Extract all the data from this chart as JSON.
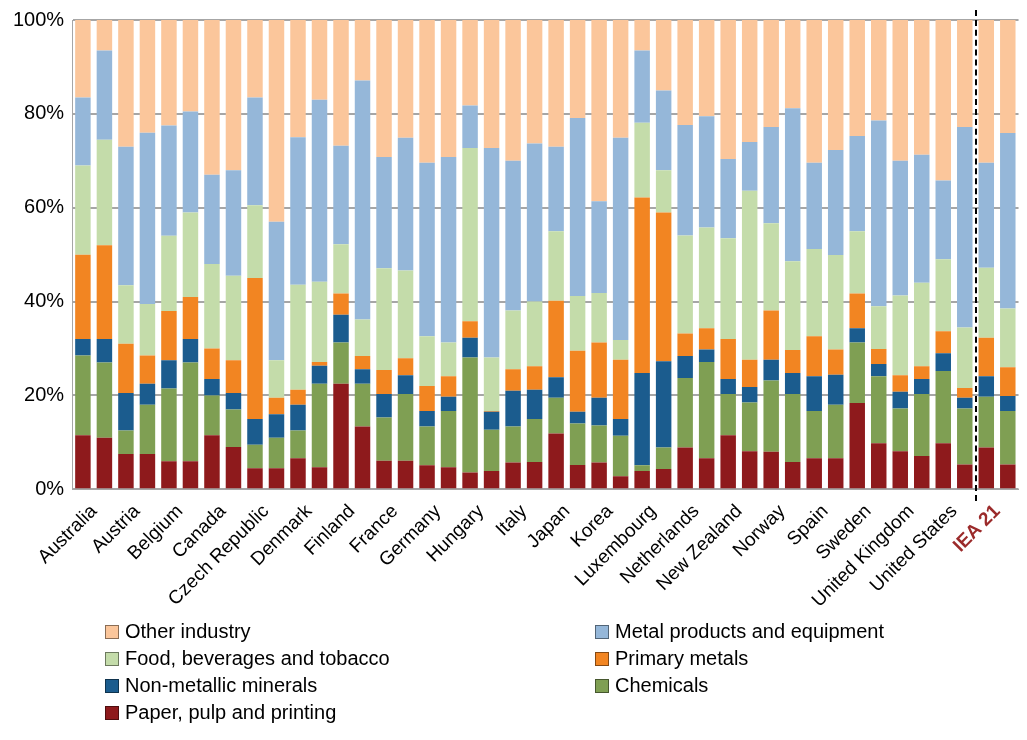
{
  "chart_data": {
    "type": "bar",
    "stacked": true,
    "grid": "y",
    "legend": "bottom",
    "categories": [
      "Australia",
      null,
      "Austria",
      null,
      "Belgium",
      null,
      "Canada",
      null,
      "Czech Republic",
      null,
      "Denmark",
      null,
      "Finland",
      null,
      "France",
      null,
      "Germany",
      null,
      "Hungary",
      null,
      "Italy",
      null,
      "Japan",
      null,
      "Korea",
      null,
      "Luxembourg",
      null,
      "Netherlands",
      null,
      "New Zealand",
      null,
      "Norway",
      null,
      "Spain",
      null,
      "Sweden",
      null,
      "United Kingdom",
      null,
      "United States",
      null,
      "IEA 21",
      null
    ],
    "ylim": [
      0,
      100
    ],
    "yticks": [
      {
        "value": 0,
        "label": "0%"
      },
      {
        "value": 20,
        "label": "20%"
      },
      {
        "value": 40,
        "label": "40%"
      },
      {
        "value": 60,
        "label": "60%"
      },
      {
        "value": 80,
        "label": "80%"
      },
      {
        "value": 100,
        "label": "100%"
      }
    ],
    "series": [
      {
        "name": "Paper, pulp and printing",
        "color": "#8e1a1c",
        "values": [
          11.5,
          11,
          7.5,
          7.5,
          6,
          6,
          11.5,
          9,
          4.5,
          4.5,
          6.6,
          4.7,
          22.5,
          13.4,
          6.1,
          6.1,
          5.1,
          4.7,
          3.6,
          3.9,
          5.7,
          5.8,
          11.9,
          5.2,
          5.7,
          2.8,
          3.9,
          4.3,
          8.9,
          6.6,
          11.5,
          8.1,
          8,
          5.8,
          6.6,
          6.6,
          18.4,
          9.8,
          8.1,
          7.1,
          9.8,
          5.3,
          8.9,
          5.3
        ]
      },
      {
        "name": "Chemicals",
        "color": "#7f9f53",
        "values": [
          17,
          16,
          5,
          10.5,
          15.5,
          21,
          8.5,
          8,
          5,
          6.5,
          5.9,
          17.8,
          8.8,
          9.1,
          9.2,
          14.2,
          8.3,
          12,
          24.5,
          8.8,
          7.7,
          9.2,
          7.6,
          8.8,
          7.9,
          8.6,
          1.2,
          4.6,
          14.8,
          20.5,
          8.8,
          10.4,
          15.2,
          14.5,
          10.1,
          11.4,
          12.9,
          14.3,
          9.1,
          13.2,
          15.4,
          11.9,
          10.8,
          11.4
        ]
      },
      {
        "name": "Non-metallic minerals",
        "color": "#1b5c8e",
        "values": [
          3.5,
          5,
          8,
          4.5,
          6,
          5,
          3.5,
          3.5,
          5.5,
          5,
          5.5,
          3.8,
          5.9,
          3.1,
          5,
          4,
          3.3,
          3,
          4.2,
          3.8,
          7.6,
          6.2,
          4.4,
          2.5,
          5.9,
          3.6,
          19.7,
          18.4,
          4.7,
          2.7,
          3.2,
          3.3,
          4.4,
          4.5,
          7.4,
          6.4,
          3,
          2.6,
          3.6,
          3.2,
          3.8,
          2.3,
          4.4,
          3.2
        ]
      },
      {
        "name": "Primary metals",
        "color": "#f28522",
        "values": [
          18,
          20,
          10.5,
          6,
          10.5,
          9,
          6.5,
          7,
          30,
          3.5,
          3.2,
          0.8,
          4.5,
          2.8,
          5.1,
          3.6,
          5.3,
          4.4,
          3.5,
          0.2,
          4.6,
          5,
          16.3,
          13,
          11.8,
          12.6,
          37.4,
          31.7,
          4.8,
          4.5,
          8.5,
          5.8,
          10.5,
          4.9,
          8.5,
          5.4,
          7.4,
          3.2,
          3.5,
          2.7,
          4.7,
          2.1,
          8.2,
          6.1
        ]
      },
      {
        "name": "Food, beverages and tobacco",
        "color": "#c4dcaa",
        "values": [
          19,
          22.5,
          12.5,
          11,
          16,
          18,
          18,
          18,
          15.5,
          8,
          22.4,
          17.1,
          10.5,
          7.8,
          21.7,
          18.7,
          10.6,
          7.2,
          36.9,
          11.4,
          12.5,
          13.8,
          14.8,
          11.7,
          10.5,
          4.2,
          15.9,
          9,
          20.9,
          21.5,
          21.5,
          36,
          18.6,
          18.9,
          18.6,
          20.1,
          13.3,
          9.1,
          17,
          17.8,
          15.3,
          12.9,
          14.9,
          12.5
        ]
      },
      {
        "name": "Metal products and equipment",
        "color": "#95b7d9",
        "values": [
          14.5,
          19,
          29.5,
          36.5,
          23.5,
          21.5,
          19,
          22.5,
          23,
          29.5,
          31.4,
          38.8,
          21,
          50.9,
          23.7,
          28.3,
          37,
          39.5,
          9.1,
          44.6,
          31.9,
          33.7,
          18,
          37.9,
          19.6,
          43.1,
          15.4,
          17,
          23.5,
          23.7,
          16.9,
          10.4,
          20.5,
          32.6,
          18.4,
          22.4,
          20.3,
          39.6,
          28.7,
          27.3,
          16.8,
          42.7,
          22.4,
          37.4
        ]
      },
      {
        "name": "Other industry",
        "color": "#fbc69b",
        "values": [
          16.5,
          6.5,
          27,
          24,
          22.5,
          19.5,
          33,
          32,
          16.5,
          43,
          25,
          17,
          26.8,
          12.9,
          29.2,
          25.1,
          30.4,
          29.2,
          18.2,
          27.3,
          30,
          26.3,
          27,
          20.9,
          38.6,
          25.1,
          6.5,
          15,
          22.4,
          20.5,
          29.6,
          26,
          22.8,
          18.8,
          30.4,
          27.7,
          24.7,
          21.4,
          30,
          28.7,
          34.2,
          22.8,
          30.4,
          24.1
        ]
      }
    ]
  }
}
